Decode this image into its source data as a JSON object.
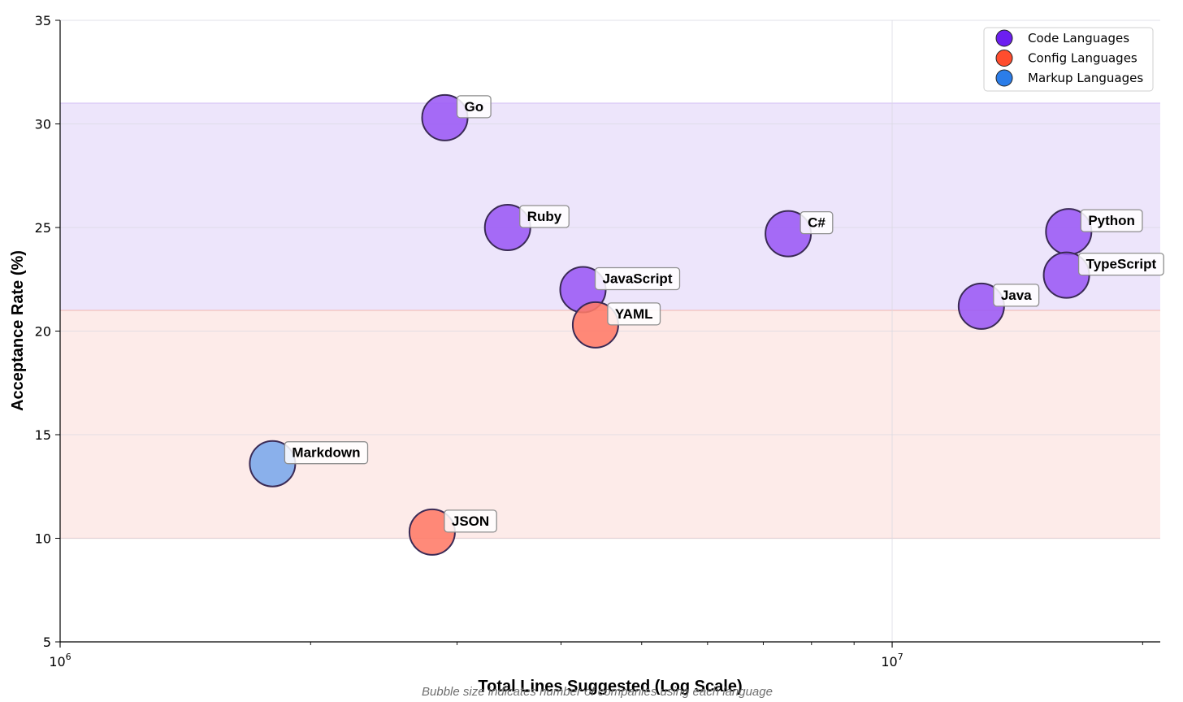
{
  "chart_data": {
    "type": "scatter",
    "subtype": "bubble",
    "title": "",
    "xlabel": "Total Lines Suggested (Log Scale)",
    "ylabel": "Acceptance Rate (%)",
    "footnote": "Bubble size indicates number of companies using each language",
    "xscale": "log",
    "xlim": [
      1000000,
      21000000
    ],
    "ylim": [
      5,
      35
    ],
    "yticks": [
      5,
      10,
      15,
      20,
      25,
      30,
      35
    ],
    "xticks": [
      {
        "value": 1000000,
        "base": "10",
        "exp": "6"
      },
      {
        "value": 10000000,
        "base": "10",
        "exp": "7"
      }
    ],
    "bands": [
      {
        "name": "code-band",
        "y0": 21,
        "y1": 31,
        "color": "#ede5fb",
        "edge": "#d8c8f5"
      },
      {
        "name": "config-band",
        "y0": 10,
        "y1": 21,
        "color": "#fdebe9",
        "edge": "#f5c3bd"
      }
    ],
    "legend": {
      "position": "top-right",
      "entries": [
        {
          "label": "Code Languages",
          "color": "#6c1ff0"
        },
        {
          "label": "Config Languages",
          "color": "#ff4d2e"
        },
        {
          "label": "Markup Languages",
          "color": "#2b7de9"
        }
      ]
    },
    "series": [
      {
        "name": "Code Languages",
        "color": "#9b59f5",
        "points": [
          {
            "label": "Go",
            "x": 2900000,
            "y": 30.3
          },
          {
            "label": "Ruby",
            "x": 3450000,
            "y": 25.0
          },
          {
            "label": "JavaScript",
            "x": 4250000,
            "y": 22.0
          },
          {
            "label": "C#",
            "x": 7500000,
            "y": 24.7
          },
          {
            "label": "Java",
            "x": 12800000,
            "y": 21.2
          },
          {
            "label": "Python",
            "x": 16300000,
            "y": 24.8
          },
          {
            "label": "TypeScript",
            "x": 16200000,
            "y": 22.7
          }
        ]
      },
      {
        "name": "Config Languages",
        "color": "#ff7a66",
        "points": [
          {
            "label": "YAML",
            "x": 4400000,
            "y": 20.3
          },
          {
            "label": "JSON",
            "x": 2800000,
            "y": 10.3
          }
        ]
      },
      {
        "name": "Markup Languages",
        "color": "#7aa7ea",
        "points": [
          {
            "label": "Markdown",
            "x": 1800000,
            "y": 13.6
          }
        ]
      }
    ]
  }
}
